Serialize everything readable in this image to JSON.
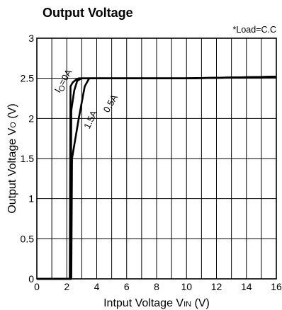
{
  "chart_data": {
    "type": "line",
    "title": "Output Voltage",
    "annotation": "*Load=C.C",
    "xlabel": {
      "main": "Intput Voltage V",
      "sub": "IN",
      "unit": " (V)"
    },
    "ylabel": {
      "main": "Output Voltage V",
      "sub": "O",
      "unit": " (V)"
    },
    "xlim": [
      0,
      16
    ],
    "ylim": [
      0,
      3
    ],
    "x_ticks": [
      "0",
      "2",
      "4",
      "6",
      "8",
      "10",
      "12",
      "14",
      "16"
    ],
    "y_ticks": [
      "0",
      "0.5",
      "1",
      "1.5",
      "2",
      "2.5",
      "3"
    ],
    "grid": true,
    "series": [
      {
        "name": "Io=0A",
        "label": {
          "main": "I",
          "sub": "O",
          "rest": "=0A"
        },
        "x": [
          0,
          2.2,
          2.25,
          2.4,
          2.6,
          2.8,
          3.2,
          6,
          10,
          16
        ],
        "y": [
          0,
          0,
          2.4,
          2.45,
          2.48,
          2.5,
          2.5,
          2.5,
          2.5,
          2.52
        ]
      },
      {
        "name": "0.5A",
        "x": [
          0,
          2.25,
          2.3,
          2.5,
          2.7,
          3.0,
          6,
          10,
          16
        ],
        "y": [
          0,
          0,
          2.1,
          2.35,
          2.47,
          2.5,
          2.5,
          2.5,
          2.52
        ]
      },
      {
        "name": "1.5A",
        "x": [
          0,
          2.3,
          2.35,
          2.8,
          3.2,
          3.5,
          6,
          10,
          16
        ],
        "y": [
          0,
          0,
          1.5,
          2.0,
          2.4,
          2.5,
          2.5,
          2.5,
          2.52
        ]
      }
    ]
  }
}
